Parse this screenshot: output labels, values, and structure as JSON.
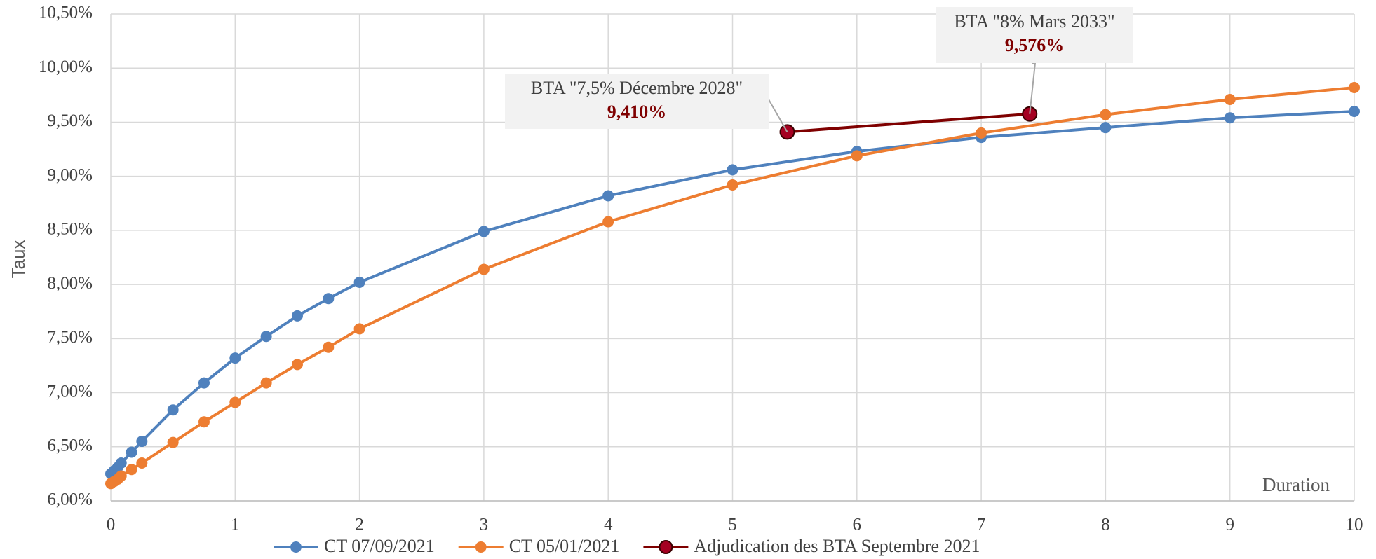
{
  "chart_data": {
    "type": "line",
    "y_label": "Taux",
    "x_label": "Duration",
    "xlim": [
      0,
      10
    ],
    "xticks": [
      0,
      1,
      2,
      3,
      4,
      5,
      6,
      7,
      8,
      9,
      10
    ],
    "ylim": [
      6,
      10.5
    ],
    "yticks": [
      {
        "value": 6,
        "label": "6,00%"
      },
      {
        "value": 6.5,
        "label": "6,50%"
      },
      {
        "value": 7,
        "label": "7,00%"
      },
      {
        "value": 7.5,
        "label": "7,50%"
      },
      {
        "value": 8,
        "label": "8,00%"
      },
      {
        "value": 8.5,
        "label": "8,50%"
      },
      {
        "value": 9,
        "label": "9,00%"
      },
      {
        "value": 9.5,
        "label": "9,50%"
      },
      {
        "value": 10,
        "label": "10,00%"
      },
      {
        "value": 10.5,
        "label": "10,50%"
      }
    ],
    "grid": true,
    "legend": "bottom",
    "series": [
      {
        "name": "CT 07/09/2021",
        "color": "#4f81bd",
        "x": [
          0,
          0.0278,
          0.0556,
          0.083,
          0.167,
          0.25,
          0.5,
          0.75,
          1,
          1.25,
          1.5,
          1.75,
          2,
          3,
          4,
          5,
          6,
          7,
          8,
          9,
          10
        ],
        "values": [
          6.25,
          6.28,
          6.31,
          6.35,
          6.45,
          6.55,
          6.84,
          7.09,
          7.32,
          7.52,
          7.71,
          7.87,
          8.02,
          8.49,
          8.82,
          9.06,
          9.23,
          9.36,
          9.45,
          9.54,
          9.6
        ]
      },
      {
        "name": "CT 05/01/2021",
        "color": "#ed7d31",
        "x": [
          0,
          0.0278,
          0.0556,
          0.083,
          0.167,
          0.25,
          0.5,
          0.75,
          1,
          1.25,
          1.5,
          1.75,
          2,
          3,
          4,
          5,
          6,
          7,
          8,
          9,
          10
        ],
        "values": [
          6.16,
          6.18,
          6.2,
          6.23,
          6.29,
          6.35,
          6.54,
          6.73,
          6.91,
          7.09,
          7.26,
          7.42,
          7.59,
          8.14,
          8.58,
          8.92,
          9.19,
          9.4,
          9.57,
          9.71,
          9.82
        ]
      },
      {
        "name": "Adjudication des BTA Septembre 2021",
        "color": "#7f0000",
        "x": [
          5.44,
          7.39
        ],
        "values": [
          9.41,
          9.576
        ],
        "value_labels": [
          "9,410%",
          "9,576%"
        ],
        "point_labels": [
          "BTA \"7,5% Décembre 2028\"",
          "BTA \"8% Mars 2033\""
        ]
      }
    ]
  }
}
